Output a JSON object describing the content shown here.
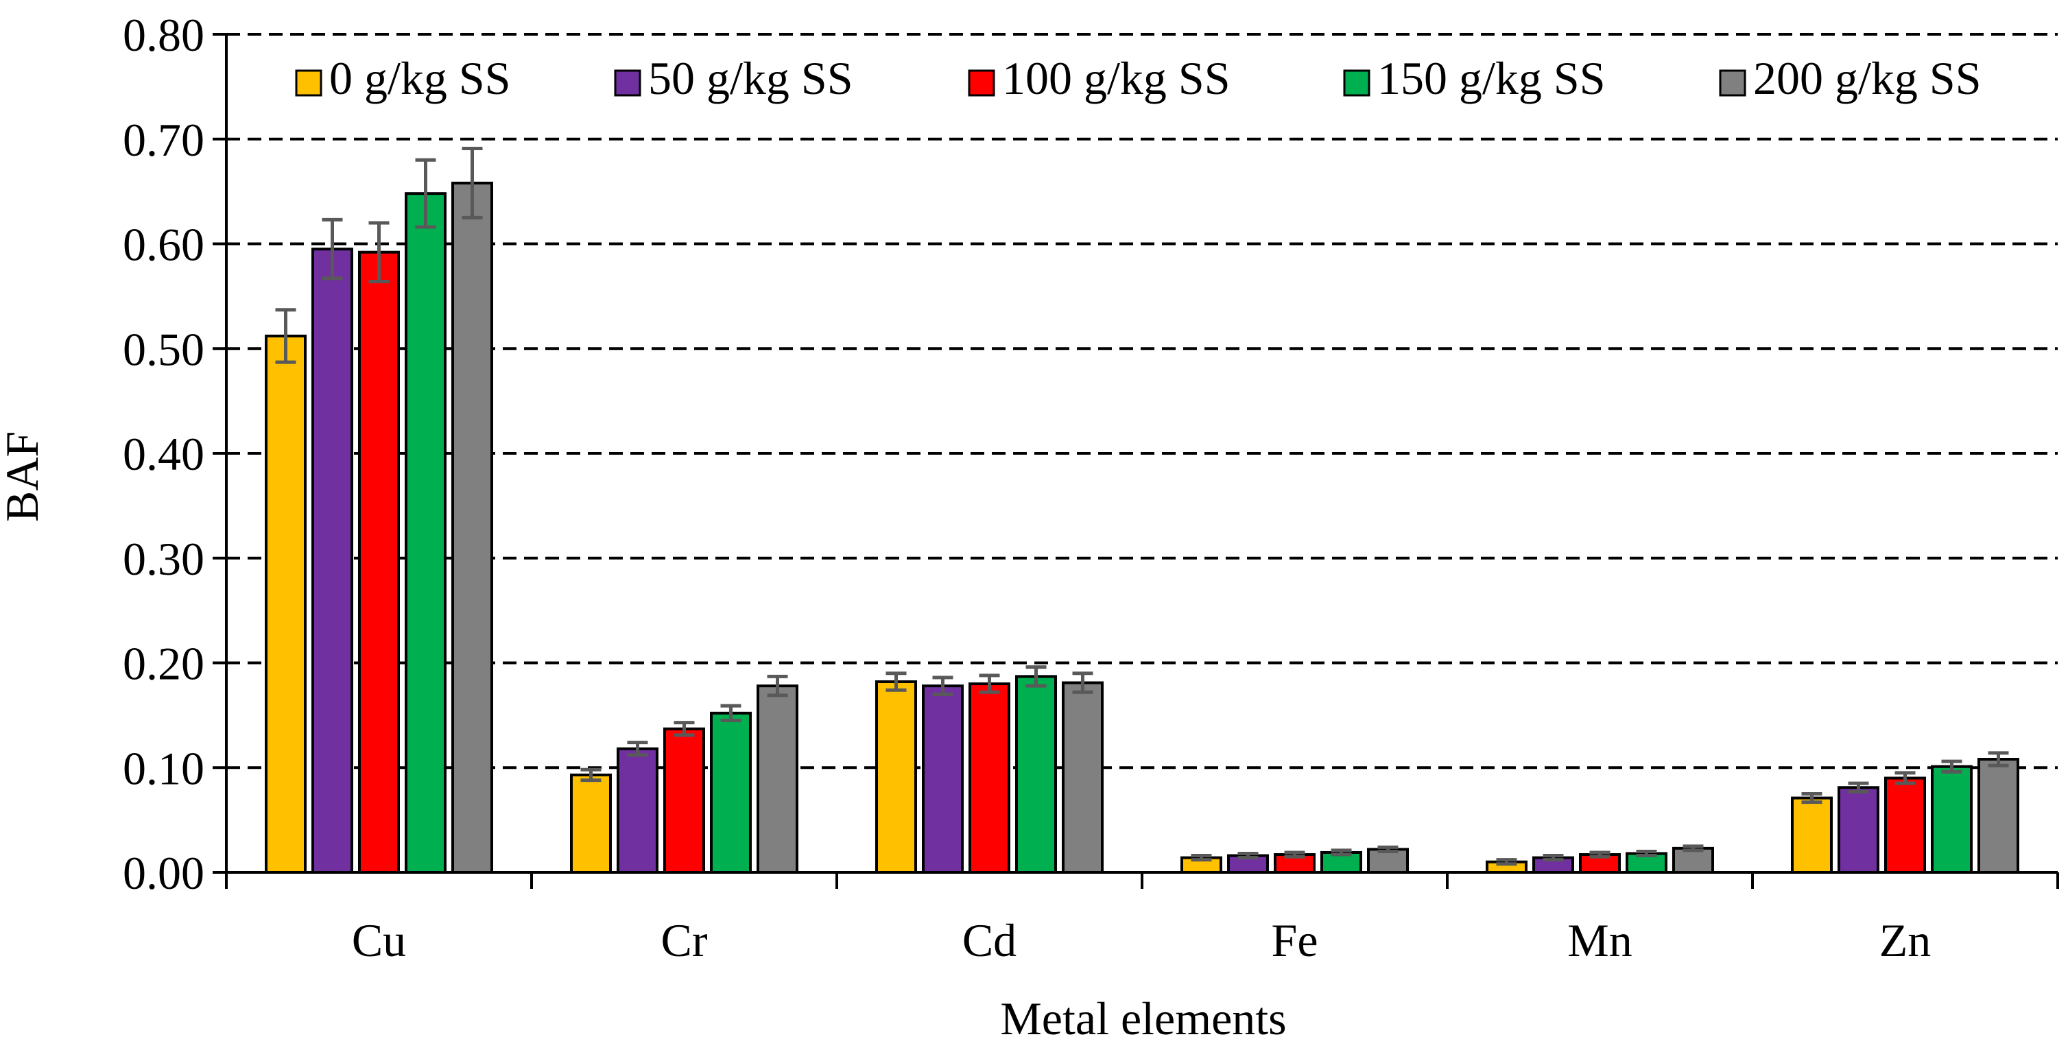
{
  "chart_data": {
    "type": "bar",
    "title": "",
    "xlabel": "Metal elements",
    "ylabel": "BAF",
    "ylim": [
      0,
      0.8
    ],
    "yticks": [
      "0.00",
      "0.10",
      "0.20",
      "0.30",
      "0.40",
      "0.50",
      "0.60",
      "0.70",
      "0.80"
    ],
    "grid": "dashed horizontal",
    "legend_position": "top",
    "categories": [
      "Cu",
      "Cr",
      "Cd",
      "Fe",
      "Mn",
      "Zn"
    ],
    "series": [
      {
        "name": "0 g/kg SS",
        "color": "#FFC000",
        "values": [
          0.512,
          0.093,
          0.182,
          0.014,
          0.01,
          0.071
        ],
        "errors": [
          0.025,
          0.005,
          0.008,
          0.002,
          0.002,
          0.004
        ]
      },
      {
        "name": "50 g/kg SS",
        "color": "#7030A0",
        "values": [
          0.595,
          0.118,
          0.178,
          0.016,
          0.014,
          0.081
        ],
        "errors": [
          0.028,
          0.006,
          0.008,
          0.002,
          0.002,
          0.004
        ]
      },
      {
        "name": "100 g/kg SS",
        "color": "#FF0000",
        "values": [
          0.592,
          0.137,
          0.18,
          0.017,
          0.017,
          0.09
        ],
        "errors": [
          0.028,
          0.006,
          0.008,
          0.002,
          0.002,
          0.005
        ]
      },
      {
        "name": "150 g/kg SS",
        "color": "#00B050",
        "values": [
          0.648,
          0.152,
          0.187,
          0.019,
          0.018,
          0.101
        ],
        "errors": [
          0.032,
          0.007,
          0.009,
          0.002,
          0.002,
          0.005
        ]
      },
      {
        "name": "200 g/kg SS",
        "color": "#808080",
        "values": [
          0.658,
          0.178,
          0.181,
          0.022,
          0.023,
          0.108
        ],
        "errors": [
          0.033,
          0.009,
          0.009,
          0.002,
          0.002,
          0.006
        ]
      }
    ]
  }
}
